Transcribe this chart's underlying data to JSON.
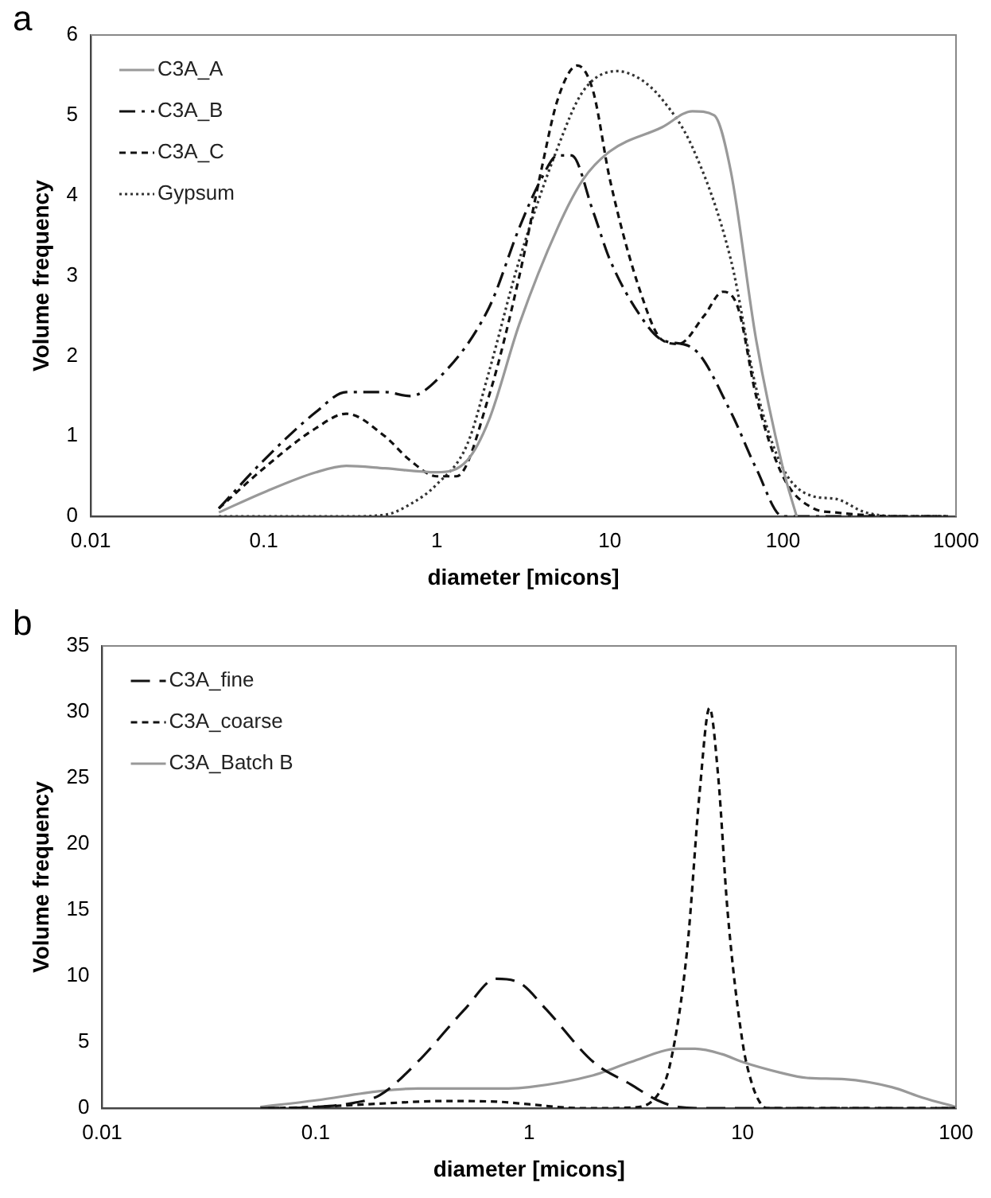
{
  "chart_data": [
    {
      "type": "line",
      "annotations": [
        "a"
      ],
      "xlabel": "diameter [micons]",
      "ylabel": "Volume frequency",
      "log": "x",
      "xlim": [
        0.01,
        1000
      ],
      "xticks": [
        0.01,
        0.1,
        1,
        10,
        100,
        1000
      ],
      "ylim": [
        0,
        6
      ],
      "yticks": [
        0,
        1,
        2,
        3,
        4,
        5,
        6
      ],
      "legend": "top left",
      "grid": false,
      "marker": "none",
      "series": [
        {
          "name": "C3A_A",
          "color": "#999999",
          "line_style": "solid",
          "x": [
            0.055,
            0.1,
            0.2,
            0.3,
            0.5,
            1,
            1.5,
            2,
            3,
            5,
            7,
            10,
            20,
            30,
            40,
            50,
            70,
            100,
            120
          ],
          "values": [
            0.05,
            0.3,
            0.55,
            0.63,
            0.6,
            0.55,
            0.7,
            1.2,
            2.4,
            3.6,
            4.2,
            4.55,
            4.85,
            5.05,
            5.0,
            4.3,
            2.2,
            0.6,
            0
          ]
        },
        {
          "name": "C3A_B",
          "color": "#111111",
          "line_style": "dashdot",
          "x": [
            0.055,
            0.1,
            0.2,
            0.3,
            0.5,
            0.7,
            1,
            2,
            3,
            4,
            5,
            6,
            8,
            10,
            15,
            20,
            30,
            50,
            70,
            100,
            200,
            900
          ],
          "values": [
            0.1,
            0.7,
            1.3,
            1.55,
            1.55,
            1.5,
            1.7,
            2.6,
            3.6,
            4.2,
            4.5,
            4.5,
            3.8,
            3.2,
            2.5,
            2.2,
            2.1,
            1.3,
            0.6,
            0,
            0,
            0
          ]
        },
        {
          "name": "C3A_C",
          "color": "#111111",
          "line_style": "dashed",
          "x": [
            0.055,
            0.1,
            0.2,
            0.3,
            0.5,
            0.7,
            1,
            1.3,
            2,
            3,
            4,
            5,
            6.5,
            8,
            10,
            15,
            20,
            25,
            35,
            45,
            55,
            70,
            100,
            150,
            200,
            500,
            900
          ],
          "values": [
            0.1,
            0.6,
            1.1,
            1.28,
            1.0,
            0.7,
            0.5,
            0.5,
            1.5,
            3.0,
            4.3,
            5.2,
            5.62,
            5.3,
            4.2,
            2.8,
            2.2,
            2.15,
            2.5,
            2.8,
            2.6,
            1.5,
            0.5,
            0.1,
            0.05,
            0,
            0
          ]
        },
        {
          "name": "Gypsum",
          "color": "#333333",
          "line_style": "dotted",
          "x": [
            0.055,
            0.3,
            0.5,
            0.7,
            1,
            1.5,
            2,
            3,
            5,
            7,
            11,
            15,
            20,
            30,
            50,
            70,
            100,
            150,
            200,
            300,
            500,
            900
          ],
          "values": [
            0,
            0,
            0.02,
            0.15,
            0.4,
            0.9,
            1.8,
            3.2,
            4.6,
            5.3,
            5.55,
            5.45,
            5.2,
            4.6,
            3.2,
            1.6,
            0.6,
            0.25,
            0.22,
            0.05,
            0,
            0
          ]
        }
      ]
    },
    {
      "type": "line",
      "annotations": [
        "b"
      ],
      "xlabel": "diameter [micons]",
      "ylabel": "Volume frequency",
      "log": "x",
      "xlim": [
        0.01,
        100
      ],
      "xticks": [
        0.01,
        0.1,
        1,
        10,
        100
      ],
      "ylim": [
        0,
        35
      ],
      "yticks": [
        0,
        5,
        10,
        15,
        20,
        25,
        30,
        35
      ],
      "legend": "top left",
      "grid": false,
      "marker": "none",
      "series": [
        {
          "name": "C3A_fine",
          "color": "#111111",
          "line_style": "longdash",
          "x": [
            0.055,
            0.1,
            0.15,
            0.2,
            0.3,
            0.5,
            0.7,
            0.9,
            1.2,
            2,
            3,
            4,
            5,
            7,
            100
          ],
          "values": [
            0,
            0.1,
            0.4,
            1.0,
            3.5,
            7.5,
            9.8,
            9.5,
            7.5,
            3.5,
            1.8,
            0.6,
            0.1,
            0,
            0
          ]
        },
        {
          "name": "C3A_coarse",
          "color": "#111111",
          "line_style": "dashed",
          "x": [
            0.06,
            0.1,
            0.2,
            0.4,
            0.7,
            1,
            1.5,
            2,
            3,
            4,
            4.6,
            5.5,
            6.3,
            7,
            7.7,
            8.5,
            10,
            11,
            12,
            13,
            100
          ],
          "values": [
            0,
            0.1,
            0.35,
            0.55,
            0.5,
            0.3,
            0.05,
            0,
            0.05,
            1,
            3.5,
            12,
            24,
            30.3,
            25,
            15,
            5,
            2,
            0.5,
            0,
            0
          ]
        },
        {
          "name": "C3A_Batch B",
          "color": "#999999",
          "line_style": "solid",
          "x": [
            0.055,
            0.1,
            0.2,
            0.3,
            0.5,
            0.8,
            1,
            2,
            3,
            5,
            6,
            8,
            10,
            15,
            20,
            30,
            50,
            70,
            100
          ],
          "values": [
            0.1,
            0.6,
            1.3,
            1.5,
            1.5,
            1.5,
            1.6,
            2.5,
            3.5,
            4.5,
            4.5,
            4.1,
            3.5,
            2.7,
            2.3,
            2.2,
            1.6,
            0.8,
            0.1
          ]
        }
      ]
    }
  ]
}
